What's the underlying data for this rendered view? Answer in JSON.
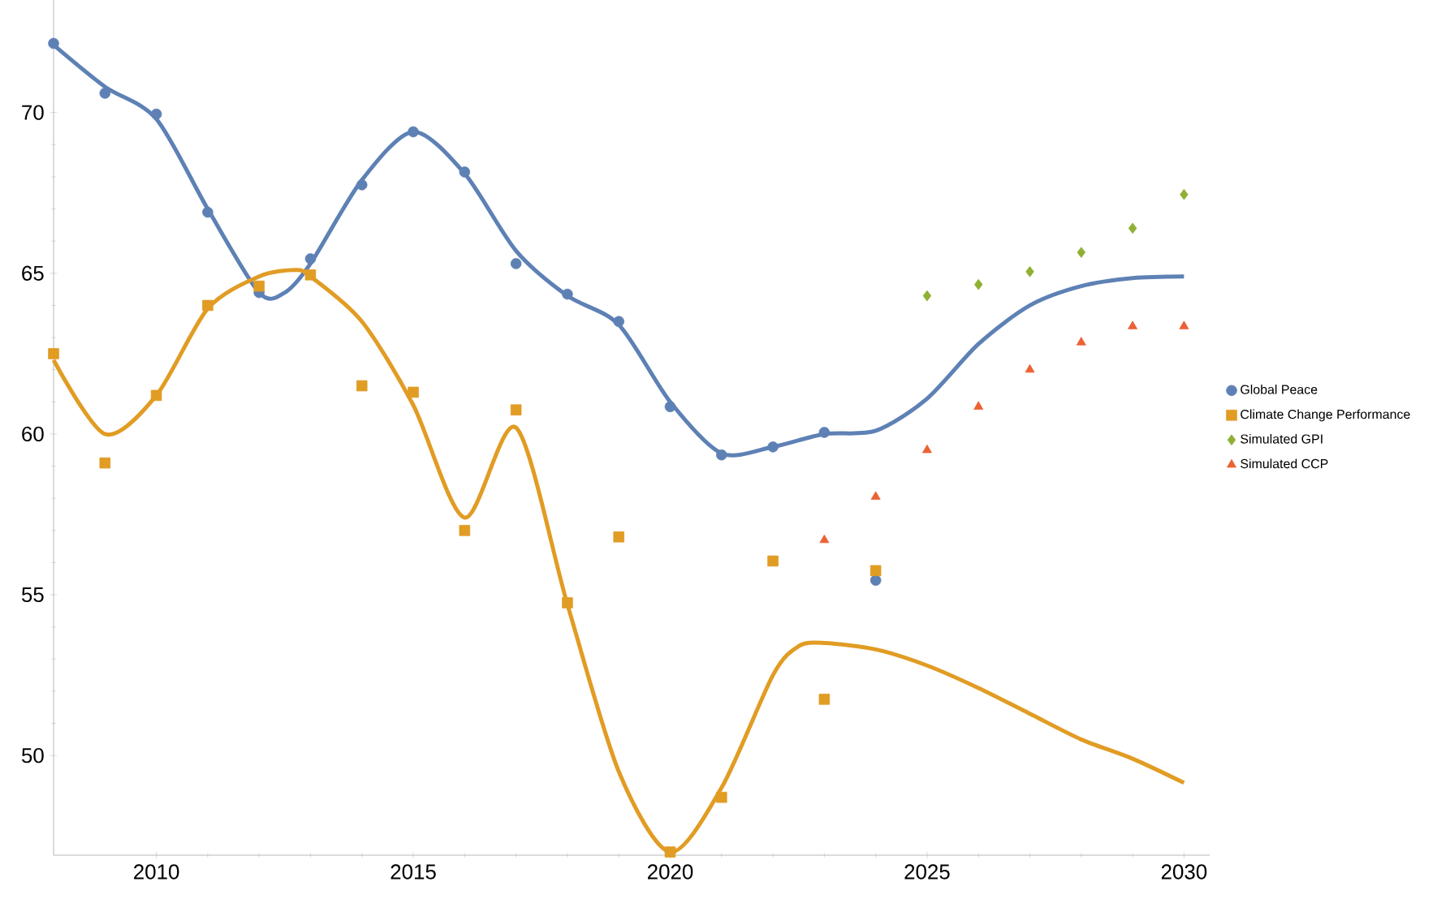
{
  "chart_data": {
    "type": "scatter",
    "xlim": [
      2008,
      2030.5
    ],
    "ylim": [
      46.9,
      73.5
    ],
    "xticks": [
      2010,
      2015,
      2020,
      2025,
      2030
    ],
    "yticks": [
      50,
      55,
      60,
      65,
      70
    ],
    "grid": false,
    "legend": "right",
    "series": [
      {
        "name": "Global Peace",
        "marker": "circle",
        "color": "#5e81b5",
        "x": [
          2008,
          2009,
          2010,
          2011,
          2012,
          2013,
          2014,
          2015,
          2016,
          2017,
          2018,
          2019,
          2020,
          2021,
          2022,
          2023,
          2024
        ],
        "values": [
          72.15,
          70.6,
          69.95,
          66.9,
          64.4,
          65.45,
          67.75,
          69.4,
          68.15,
          65.3,
          64.35,
          63.5,
          60.85,
          59.35,
          59.6,
          60.05,
          55.45
        ]
      },
      {
        "name": "Climate Change Performance",
        "marker": "square",
        "color": "#e19c24",
        "x": [
          2008,
          2009,
          2010,
          2011,
          2012,
          2013,
          2014,
          2015,
          2016,
          2017,
          2018,
          2019,
          2020,
          2021,
          2022,
          2023,
          2024
        ],
        "values": [
          62.5,
          59.1,
          61.2,
          64.0,
          64.6,
          64.95,
          61.5,
          61.3,
          57.0,
          60.75,
          54.75,
          56.8,
          47.0,
          48.7,
          56.05,
          51.75,
          55.75
        ]
      },
      {
        "name": "Simulated GPI",
        "marker": "diamond",
        "color": "#8fb032",
        "x": [
          2025,
          2026,
          2027,
          2028,
          2029,
          2030
        ],
        "values": [
          64.3,
          64.65,
          65.05,
          65.65,
          66.4,
          67.45
        ]
      },
      {
        "name": "Simulated CCP",
        "marker": "triangle",
        "color": "#eb6235",
        "x": [
          2023,
          2024,
          2025,
          2026,
          2027,
          2028,
          2029,
          2030
        ],
        "values": [
          56.7,
          58.05,
          59.5,
          60.85,
          62.0,
          62.85,
          63.35,
          63.35
        ]
      },
      {
        "type": "line",
        "marker": "none",
        "color": "#5e81b5",
        "x": [
          2008,
          2009,
          2010,
          2011,
          2012,
          2012.5,
          2013,
          2014,
          2015,
          2016,
          2017,
          2018,
          2019,
          2020,
          2021,
          2022,
          2023,
          2024,
          2025,
          2026,
          2027,
          2028,
          2029,
          2030
        ],
        "values": [
          72.1,
          70.8,
          69.8,
          67.0,
          64.4,
          64.4,
          65.3,
          67.9,
          69.4,
          68.1,
          65.7,
          64.3,
          63.4,
          61.0,
          59.4,
          59.6,
          60.0,
          60.1,
          61.1,
          62.8,
          64.0,
          64.6,
          64.85,
          64.9
        ]
      },
      {
        "type": "line",
        "marker": "none",
        "color": "#e19c24",
        "x": [
          2008,
          2009,
          2010,
          2011,
          2012,
          2012.7,
          2013,
          2014,
          2015,
          2016,
          2017,
          2018,
          2019,
          2020,
          2021,
          2022,
          2022.5,
          2023,
          2024,
          2025,
          2026,
          2027,
          2028,
          2029,
          2030
        ],
        "values": [
          62.3,
          60.0,
          61.2,
          63.9,
          64.9,
          65.1,
          64.9,
          63.5,
          60.9,
          57.4,
          60.2,
          54.7,
          49.5,
          47.0,
          49.0,
          52.5,
          53.4,
          53.5,
          53.3,
          52.8,
          52.1,
          51.3,
          50.5,
          49.9,
          49.15
        ]
      }
    ]
  }
}
